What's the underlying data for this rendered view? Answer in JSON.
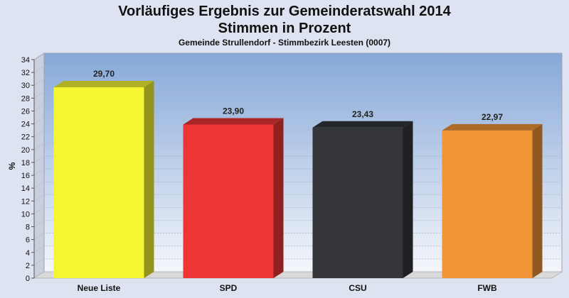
{
  "chart_data": {
    "type": "bar",
    "title": [
      "Vorläufiges Ergebnis zur Gemeinderatswahl 2014",
      "Stimmen in Prozent"
    ],
    "subtitle": "Gemeinde Strullendorf - Stimmbezirk Leesten (0007)",
    "ylabel": "%",
    "ylim": [
      0,
      34
    ],
    "ytick_step": 2,
    "grid": true,
    "categories": [
      "Neue Liste",
      "SPD",
      "CSU",
      "FWB"
    ],
    "values": [
      29.7,
      23.9,
      23.43,
      22.97
    ],
    "value_labels": [
      "29,70",
      "23,90",
      "23,43",
      "22,97"
    ],
    "colors": [
      "#f5f532",
      "#ee3535",
      "#343539",
      "#f29538"
    ]
  }
}
